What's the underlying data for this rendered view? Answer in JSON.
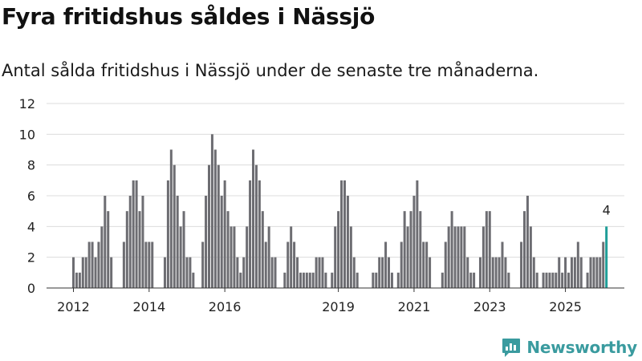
{
  "title": "Fyra fritidshus såldes i Nässjö",
  "subtitle": "Antal sålda fritidshus i Nässjö under de senaste tre månaderna.",
  "brand": "Newsworthy",
  "colors": {
    "bar": "#6d6d72",
    "highlight": "#1f9e98",
    "grid": "#dcdcdc",
    "brand": "#3a9b9f"
  },
  "chart_data": {
    "type": "bar",
    "title": "Fyra fritidshus såldes i Nässjö",
    "subtitle": "Antal sålda fritidshus i Nässjö under de senaste tre månaderna.",
    "xlabel": "",
    "ylabel": "",
    "ylim": [
      0,
      12
    ],
    "yticks": [
      0,
      2,
      4,
      6,
      8,
      10,
      12
    ],
    "grid": true,
    "series": [
      {
        "name": "Antal sålda fritidshus",
        "start": "2012-01",
        "frequency": "monthly",
        "values": [
          2,
          1,
          1,
          2,
          2,
          3,
          3,
          2,
          3,
          4,
          6,
          5,
          2,
          0,
          0,
          0,
          3,
          5,
          6,
          7,
          7,
          5,
          6,
          3,
          3,
          3,
          0,
          0,
          0,
          2,
          7,
          9,
          8,
          6,
          4,
          5,
          2,
          2,
          1,
          0,
          0,
          3,
          6,
          8,
          10,
          9,
          8,
          6,
          7,
          5,
          4,
          4,
          2,
          1,
          2,
          4,
          7,
          9,
          8,
          7,
          5,
          3,
          4,
          2,
          2,
          0,
          0,
          1,
          3,
          4,
          3,
          2,
          1,
          1,
          1,
          1,
          1,
          2,
          2,
          2,
          1,
          0,
          1,
          4,
          5,
          7,
          7,
          6,
          4,
          2,
          1,
          0,
          0,
          0,
          0,
          1,
          1,
          2,
          2,
          3,
          2,
          1,
          0,
          1,
          3,
          5,
          4,
          5,
          6,
          7,
          5,
          3,
          3,
          2,
          0,
          0,
          0,
          1,
          3,
          4,
          5,
          4,
          4,
          4,
          4,
          2,
          1,
          1,
          0,
          2,
          4,
          5,
          5,
          2,
          2,
          2,
          3,
          2,
          1,
          0,
          0,
          0,
          3,
          5,
          6,
          4,
          2,
          1,
          0,
          1,
          1,
          1,
          1,
          1,
          2,
          1,
          2,
          1,
          2,
          2,
          3,
          2,
          0,
          1,
          2,
          2,
          2,
          2,
          3,
          4
        ]
      }
    ],
    "highlight": {
      "label": "4",
      "value": 4
    },
    "x_tick_labels": [
      "2012",
      "2014",
      "2016",
      "2019",
      "2021",
      "2023",
      "2025"
    ],
    "x_tick_months": [
      0,
      24,
      48,
      84,
      108,
      132,
      156
    ]
  }
}
